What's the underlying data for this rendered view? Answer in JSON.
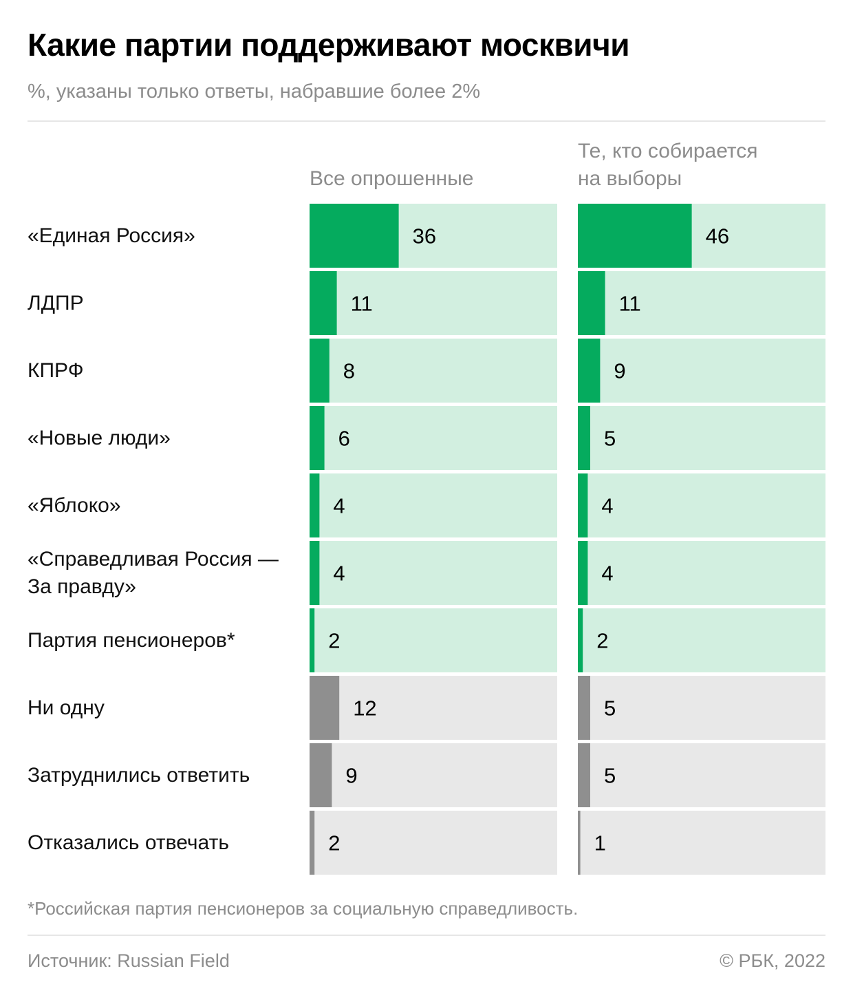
{
  "title": "Какие партии поддерживают москвичи",
  "subtitle": "%, указаны только ответы, набравшие более 2%",
  "footnote": "*Российская партия пенсионеров за социальную справедливость.",
  "source": "Источник: Russian Field",
  "copyright": "© РБК, 2022",
  "colors": {
    "party_bar": "#05ab5e",
    "party_track": "#d2efe0",
    "other_bar": "#8f8f8f",
    "other_track": "#e8e8e8"
  },
  "chart_data": {
    "type": "bar",
    "orientation": "horizontal",
    "xlim": [
      0,
      100
    ],
    "categories": [
      "«Единая Россия»",
      "ЛДПР",
      "КПРФ",
      "«Новые люди»",
      "«Яблоко»",
      "«Справедливая Россия —\nЗа правду»",
      "Партия пенсионеров*",
      "Ни одну",
      "Затруднились ответить",
      "Отказались отвечать"
    ],
    "row_group": [
      "party",
      "party",
      "party",
      "party",
      "party",
      "party",
      "party",
      "other",
      "other",
      "other"
    ],
    "series": [
      {
        "name": "Все опрошенные",
        "values": [
          36,
          11,
          8,
          6,
          4,
          4,
          2,
          12,
          9,
          2
        ]
      },
      {
        "name": "Те, кто собирается\nна выборы",
        "values": [
          46,
          11,
          9,
          5,
          4,
          4,
          2,
          5,
          5,
          1
        ]
      }
    ]
  }
}
